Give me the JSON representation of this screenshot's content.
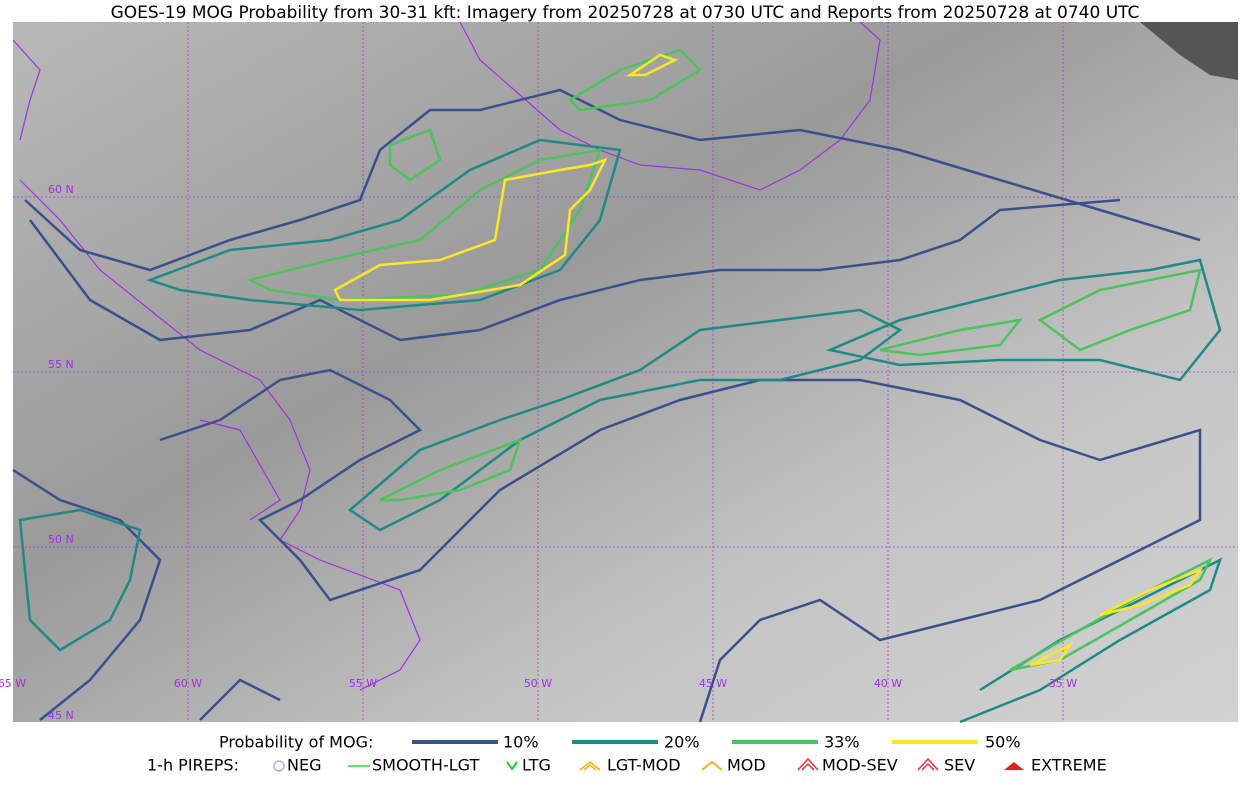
{
  "title": "GOES-19 MOG Probability from 30-31 kft: Imagery from 20250728 at 0730 UTC and Reports from 20250728 at 0740 UTC",
  "map": {
    "lat_labels": [
      "60 N",
      "55 N",
      "50 N",
      "45 N"
    ],
    "lon_labels": [
      "65 W",
      "60 W",
      "55 W",
      "50 W",
      "45 W",
      "40 W",
      "35 W"
    ]
  },
  "legend": {
    "probability": {
      "label": "Probability of MOG:",
      "items": [
        "10%",
        "20%",
        "33%",
        "50%"
      ]
    },
    "pireps": {
      "label": "1-h PIREPS:",
      "items": [
        "NEG",
        "SMOOTH-LGT",
        "LTG",
        "LGT-MOD",
        "MOD",
        "MOD-SEV",
        "SEV",
        "EXTREME"
      ]
    }
  }
}
